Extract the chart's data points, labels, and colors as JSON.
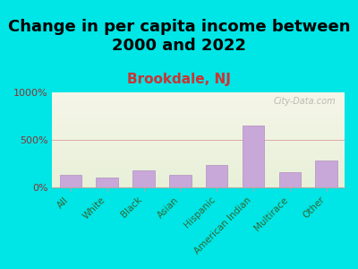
{
  "title": "Change in per capita income between\n2000 and 2022",
  "subtitle": "Brookdale, NJ",
  "categories": [
    "All",
    "White",
    "Black",
    "Asian",
    "Hispanic",
    "American Indian",
    "Multirace",
    "Other"
  ],
  "values": [
    130,
    100,
    175,
    130,
    230,
    650,
    160,
    280
  ],
  "bar_color": "#c8a8d8",
  "bar_edge_color": "#b090c0",
  "background_color": "#00e5e5",
  "plot_bg_top": "#e8f0d8",
  "plot_bg_bottom": "#f5f5e8",
  "title_fontsize": 13,
  "subtitle_color": "#cc3333",
  "subtitle_fontsize": 11,
  "ylabel_ticks": [
    0,
    500,
    1000
  ],
  "ylabel_labels": [
    "0%",
    "500%",
    "1000%"
  ],
  "ymax": 1000,
  "watermark": "City-Data.com"
}
